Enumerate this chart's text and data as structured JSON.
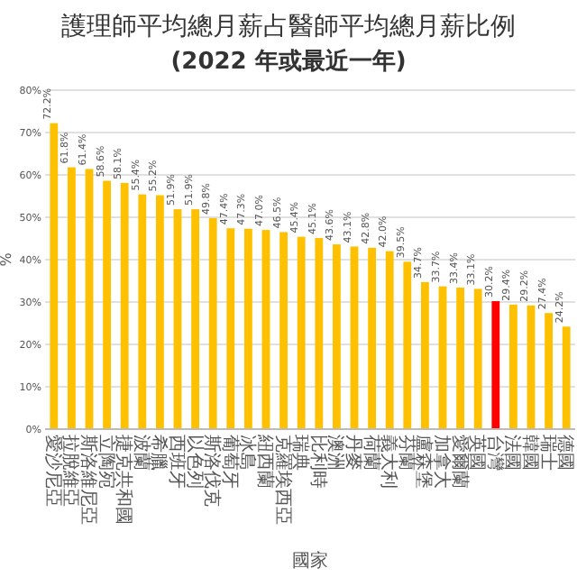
{
  "chart_data": {
    "type": "bar",
    "title": "護理師平均總月薪占醫師平均總月薪比例",
    "subtitle": "(2022 年或最近一年)",
    "xlabel": "國家",
    "ylabel": "%",
    "categories": [
      "愛沙尼亞",
      "拉脫維亞",
      "斯洛維尼亞",
      "立陶宛",
      "捷克共和國",
      "波蘭",
      "希臘",
      "西班牙",
      "以色列",
      "斯洛伐克",
      "葡萄牙",
      "冰島",
      "紐西蘭",
      "克羅埃西亞",
      "瑞典",
      "比利時",
      "澳洲",
      "丹麥",
      "荷蘭",
      "義大利",
      "芬蘭",
      "盧森堡",
      "加拿大",
      "愛爾蘭",
      "英國",
      "台灣",
      "法國",
      "韓國",
      "瑞士",
      "德國"
    ],
    "values": [
      72.2,
      61.8,
      61.4,
      58.6,
      58.1,
      55.4,
      55.2,
      51.9,
      51.9,
      49.8,
      47.4,
      47.3,
      47.0,
      46.5,
      45.4,
      45.1,
      43.6,
      43.1,
      42.8,
      42.0,
      39.5,
      34.7,
      33.7,
      33.4,
      33.1,
      30.2,
      29.4,
      29.2,
      27.4,
      24.2
    ],
    "value_labels": [
      "72.2%",
      "61.8%",
      "61.4%",
      "58.6%",
      "58.1%",
      "55.4%",
      "55.2%",
      "51.9%",
      "51.9%",
      "49.8%",
      "47.4%",
      "47.3%",
      "47.0%",
      "46.5%",
      "45.4%",
      "45.1%",
      "43.6%",
      "43.1%",
      "42.8%",
      "42.0%",
      "39.5%",
      "34.7%",
      "33.7%",
      "33.4%",
      "33.1%",
      "30.2%",
      "29.4%",
      "29.2%",
      "27.4%",
      "24.2%"
    ],
    "colors": [
      "#ffc000",
      "#ffc000",
      "#ffc000",
      "#ffc000",
      "#ffc000",
      "#ffc000",
      "#ffc000",
      "#ffc000",
      "#ffc000",
      "#ffc000",
      "#ffc000",
      "#ffc000",
      "#ffc000",
      "#ffc000",
      "#ffc000",
      "#ffc000",
      "#ffc000",
      "#ffc000",
      "#ffc000",
      "#ffc000",
      "#ffc000",
      "#ffc000",
      "#ffc000",
      "#ffc000",
      "#ffc000",
      "#ff0000",
      "#ffc000",
      "#ffc000",
      "#ffc000",
      "#ffc000"
    ],
    "ylim": [
      0,
      80
    ],
    "yticks": [
      {
        "value": 0,
        "label": "0%"
      },
      {
        "value": 10,
        "label": "10%"
      },
      {
        "value": 20,
        "label": "20%"
      },
      {
        "value": 30,
        "label": "30%"
      },
      {
        "value": 40,
        "label": "40%"
      },
      {
        "value": 50,
        "label": "50%"
      },
      {
        "value": 60,
        "label": "60%"
      },
      {
        "value": 70,
        "label": "70%"
      },
      {
        "value": 80,
        "label": "80%"
      }
    ],
    "grid": "y"
  }
}
